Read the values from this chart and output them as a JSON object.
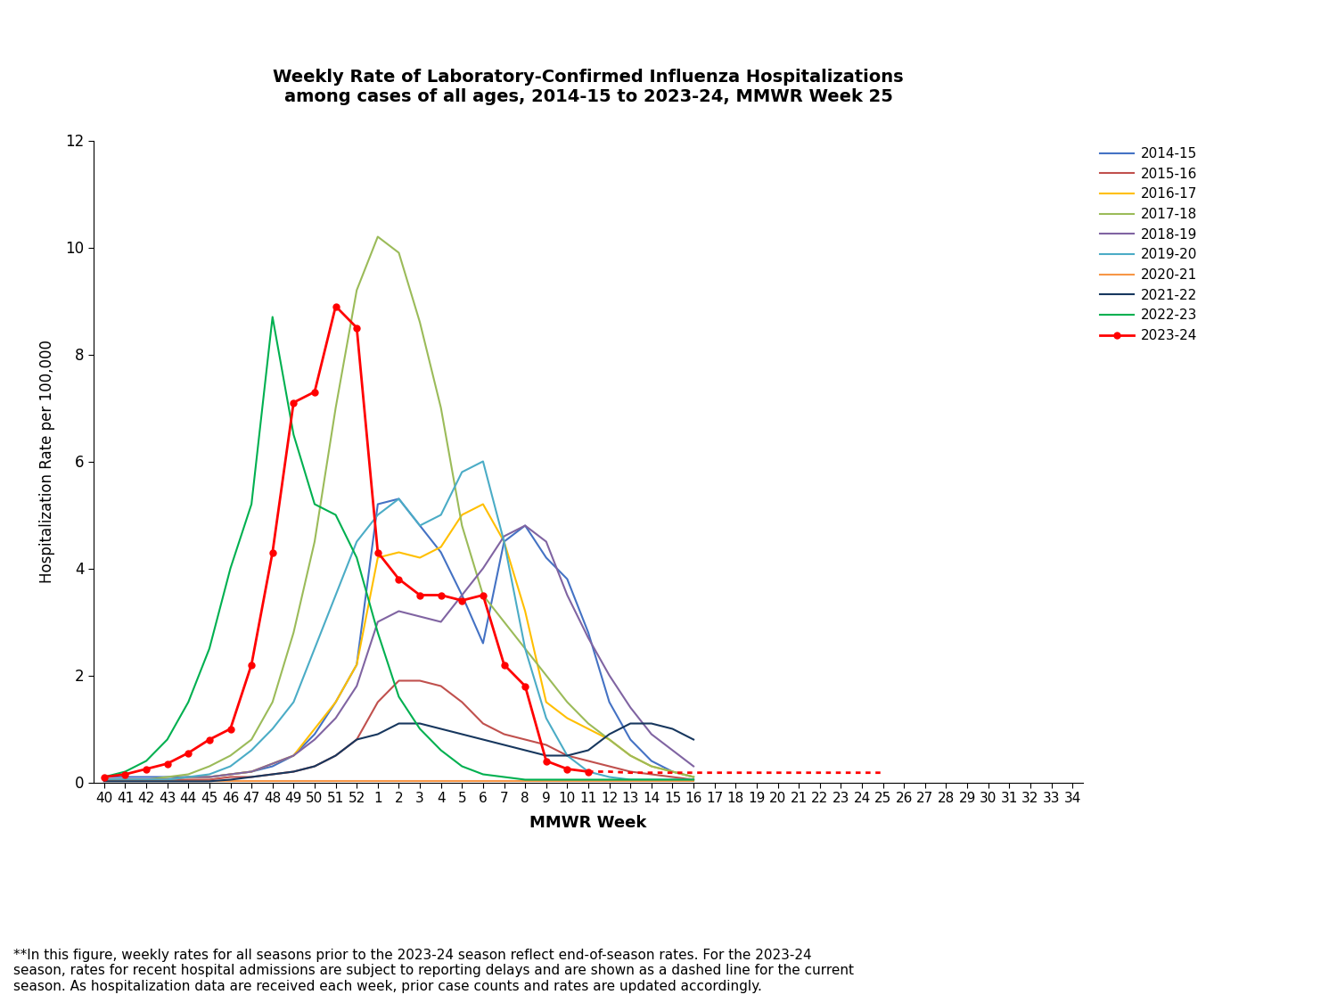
{
  "title": "Weekly Rate of Laboratory-Confirmed Influenza Hospitalizations\namong cases of all ages, 2014-15 to 2023-24, MMWR Week 25",
  "xlabel": "MMWR Week",
  "ylabel": "Hospitalization Rate per 100,000",
  "footnote": "**In this figure, weekly rates for all seasons prior to the 2023-24 season reflect end-of-season rates. For the 2023-24\nseason, rates for recent hospital admissions are subject to reporting delays and are shown as a dashed line for the current\nseason. As hospitalization data are received each week, prior case counts and rates are updated accordingly.",
  "x_labels": [
    "40",
    "41",
    "42",
    "43",
    "44",
    "45",
    "46",
    "47",
    "48",
    "49",
    "50",
    "51",
    "52",
    "1",
    "2",
    "3",
    "4",
    "5",
    "6",
    "7",
    "8",
    "9",
    "10",
    "11",
    "12",
    "13",
    "14",
    "15",
    "16",
    "17",
    "18",
    "19",
    "20",
    "21",
    "22",
    "23",
    "24",
    "25",
    "26",
    "27",
    "28",
    "29",
    "30",
    "31",
    "32",
    "33",
    "34"
  ],
  "ylim": [
    0,
    12
  ],
  "yticks": [
    0,
    2,
    4,
    6,
    8,
    10,
    12
  ],
  "seasons": {
    "2014-15": {
      "color": "#4472C4",
      "x_indices": [
        0,
        1,
        2,
        3,
        4,
        5,
        6,
        7,
        8,
        9,
        10,
        11,
        12,
        13,
        14,
        15,
        16,
        17,
        18,
        19,
        20,
        21,
        22,
        23,
        24,
        25,
        26,
        27,
        28
      ],
      "y": [
        0.1,
        0.1,
        0.1,
        0.1,
        0.1,
        0.1,
        0.15,
        0.2,
        0.3,
        0.5,
        0.9,
        1.5,
        2.2,
        5.2,
        5.3,
        4.8,
        4.3,
        3.5,
        2.6,
        4.5,
        4.8,
        4.2,
        3.8,
        2.8,
        1.5,
        0.8,
        0.4,
        0.2,
        0.1
      ]
    },
    "2015-16": {
      "color": "#C0504D",
      "x_indices": [
        0,
        1,
        2,
        3,
        4,
        5,
        6,
        7,
        8,
        9,
        10,
        11,
        12,
        13,
        14,
        15,
        16,
        17,
        18,
        19,
        20,
        21,
        22,
        23,
        24,
        25,
        26,
        27,
        28
      ],
      "y": [
        0.05,
        0.05,
        0.05,
        0.05,
        0.05,
        0.05,
        0.1,
        0.1,
        0.15,
        0.2,
        0.3,
        0.5,
        0.8,
        1.5,
        1.9,
        1.9,
        1.8,
        1.5,
        1.1,
        0.9,
        0.8,
        0.7,
        0.5,
        0.4,
        0.3,
        0.2,
        0.15,
        0.1,
        0.05
      ]
    },
    "2016-17": {
      "color": "#FFBF00",
      "x_indices": [
        0,
        1,
        2,
        3,
        4,
        5,
        6,
        7,
        8,
        9,
        10,
        11,
        12,
        13,
        14,
        15,
        16,
        17,
        18,
        19,
        20,
        21,
        22,
        23,
        24,
        25,
        26,
        27,
        28
      ],
      "y": [
        0.05,
        0.05,
        0.05,
        0.05,
        0.1,
        0.1,
        0.15,
        0.2,
        0.35,
        0.5,
        1.0,
        1.5,
        2.2,
        4.2,
        4.3,
        4.2,
        4.4,
        5.0,
        5.2,
        4.5,
        3.2,
        1.5,
        1.2,
        1.0,
        0.8,
        0.5,
        0.3,
        0.2,
        0.1
      ]
    },
    "2017-18": {
      "color": "#9BBB59",
      "x_indices": [
        0,
        1,
        2,
        3,
        4,
        5,
        6,
        7,
        8,
        9,
        10,
        11,
        12,
        13,
        14,
        15,
        16,
        17,
        18,
        19,
        20,
        21,
        22,
        23,
        24,
        25,
        26,
        27,
        28
      ],
      "y": [
        0.05,
        0.05,
        0.05,
        0.1,
        0.15,
        0.3,
        0.5,
        0.8,
        1.5,
        2.8,
        4.5,
        7.0,
        9.2,
        10.2,
        9.9,
        8.6,
        7.0,
        4.8,
        3.5,
        3.0,
        2.5,
        2.0,
        1.5,
        1.1,
        0.8,
        0.5,
        0.3,
        0.2,
        0.1
      ]
    },
    "2018-19": {
      "color": "#8064A2",
      "x_indices": [
        0,
        1,
        2,
        3,
        4,
        5,
        6,
        7,
        8,
        9,
        10,
        11,
        12,
        13,
        14,
        15,
        16,
        17,
        18,
        19,
        20,
        21,
        22,
        23,
        24,
        25,
        26,
        27,
        28
      ],
      "y": [
        0.05,
        0.05,
        0.05,
        0.05,
        0.1,
        0.1,
        0.15,
        0.2,
        0.35,
        0.5,
        0.8,
        1.2,
        1.8,
        3.0,
        3.2,
        3.1,
        3.0,
        3.5,
        4.0,
        4.6,
        4.8,
        4.5,
        3.5,
        2.7,
        2.0,
        1.4,
        0.9,
        0.6,
        0.3
      ]
    },
    "2019-20": {
      "color": "#4BACC6",
      "x_indices": [
        0,
        1,
        2,
        3,
        4,
        5,
        6,
        7,
        8,
        9,
        10,
        11,
        12,
        13,
        14,
        15,
        16,
        17,
        18,
        19,
        20,
        21,
        22,
        23,
        24,
        25,
        26,
        27,
        28
      ],
      "y": [
        0.05,
        0.05,
        0.05,
        0.05,
        0.1,
        0.15,
        0.3,
        0.6,
        1.0,
        1.5,
        2.5,
        3.5,
        4.5,
        5.0,
        5.3,
        4.8,
        5.0,
        5.8,
        6.0,
        4.5,
        2.5,
        1.2,
        0.5,
        0.2,
        0.1,
        0.05,
        0.05,
        0.05,
        0.05
      ]
    },
    "2020-21": {
      "color": "#F79646",
      "x_indices": [
        0,
        1,
        2,
        3,
        4,
        5,
        6,
        7,
        8,
        9,
        10,
        11,
        12,
        13,
        14,
        15,
        16,
        17,
        18,
        19,
        20,
        21,
        22,
        23,
        24,
        25,
        26,
        27,
        28
      ],
      "y": [
        0.02,
        0.02,
        0.02,
        0.02,
        0.02,
        0.02,
        0.02,
        0.02,
        0.02,
        0.02,
        0.02,
        0.02,
        0.02,
        0.02,
        0.02,
        0.02,
        0.02,
        0.02,
        0.02,
        0.02,
        0.02,
        0.02,
        0.02,
        0.02,
        0.02,
        0.02,
        0.02,
        0.02,
        0.02
      ]
    },
    "2021-22": {
      "color": "#17375E",
      "x_indices": [
        0,
        1,
        2,
        3,
        4,
        5,
        6,
        7,
        8,
        9,
        10,
        11,
        12,
        13,
        14,
        15,
        16,
        17,
        18,
        19,
        20,
        21,
        22,
        23,
        24,
        25,
        26,
        27,
        28
      ],
      "y": [
        0.02,
        0.02,
        0.02,
        0.02,
        0.02,
        0.02,
        0.05,
        0.1,
        0.15,
        0.2,
        0.3,
        0.5,
        0.8,
        0.9,
        1.1,
        1.1,
        1.0,
        0.9,
        0.8,
        0.7,
        0.6,
        0.5,
        0.5,
        0.6,
        0.9,
        1.1,
        1.1,
        1.0,
        0.8
      ]
    },
    "2022-23": {
      "color": "#00B050",
      "x_indices": [
        0,
        1,
        2,
        3,
        4,
        5,
        6,
        7,
        8,
        9,
        10,
        11,
        12,
        13,
        14,
        15,
        16,
        17,
        18,
        19,
        20,
        21,
        22,
        23,
        24,
        25,
        26,
        27,
        28
      ],
      "y": [
        0.1,
        0.2,
        0.4,
        0.8,
        1.5,
        2.5,
        4.0,
        5.2,
        8.7,
        6.5,
        5.2,
        5.0,
        4.2,
        2.8,
        1.6,
        1.0,
        0.6,
        0.3,
        0.15,
        0.1,
        0.05,
        0.05,
        0.05,
        0.05,
        0.05,
        0.05,
        0.05,
        0.05,
        0.05
      ]
    },
    "2023-24": {
      "color": "#FF0000",
      "solid_x_indices": [
        0,
        1,
        2,
        3,
        4,
        5,
        6,
        7,
        8,
        9,
        10,
        11,
        12,
        13,
        14,
        15,
        16,
        17,
        18,
        19,
        20,
        21,
        22,
        23
      ],
      "solid_y": [
        0.1,
        0.15,
        0.25,
        0.35,
        0.55,
        0.8,
        1.0,
        2.2,
        4.3,
        7.1,
        7.3,
        8.9,
        8.5,
        4.3,
        3.8,
        3.5,
        3.5,
        3.4,
        3.5,
        2.2,
        1.8,
        0.4,
        0.25,
        0.2
      ],
      "dashed_x_indices": [
        23,
        24,
        25,
        26,
        27,
        28,
        29,
        30,
        31,
        32,
        33,
        34,
        35,
        36,
        37
      ],
      "dashed_y": [
        0.2,
        0.2,
        0.18,
        0.18,
        0.18,
        0.18,
        0.18,
        0.18,
        0.18,
        0.18,
        0.18,
        0.18,
        0.18,
        0.18,
        0.18
      ]
    }
  },
  "season_order": [
    "2014-15",
    "2015-16",
    "2016-17",
    "2017-18",
    "2018-19",
    "2019-20",
    "2020-21",
    "2021-22",
    "2022-23",
    "2023-24"
  ]
}
